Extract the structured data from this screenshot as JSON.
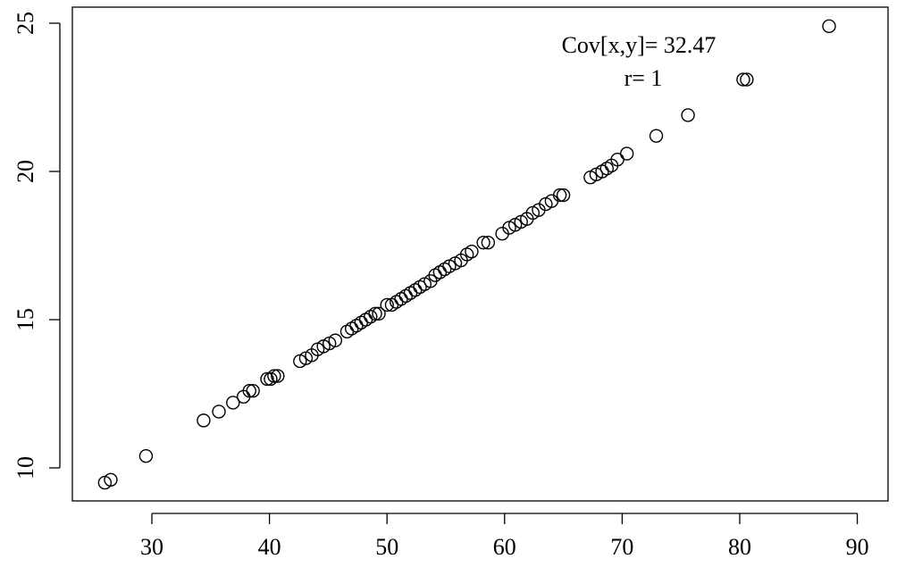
{
  "chart_data": {
    "type": "scatter",
    "title": "",
    "xlabel": "",
    "ylabel": "",
    "xlim": [
      24,
      90
    ],
    "ylim": [
      9,
      25.5
    ],
    "x_ticks": [
      30,
      40,
      50,
      60,
      70,
      80,
      90
    ],
    "y_ticks": [
      10,
      15,
      20,
      25
    ],
    "grid": false,
    "marker": "open-circle",
    "annotations": [
      {
        "text": "Cov[x,y]= 32.47",
        "x": 74.0,
        "y": 24.2
      },
      {
        "text": "r= 1",
        "x": 74.0,
        "y": 23.1
      }
    ],
    "points": [
      {
        "x": 26.0,
        "y": 9.5
      },
      {
        "x": 26.5,
        "y": 9.6
      },
      {
        "x": 29.5,
        "y": 10.4
      },
      {
        "x": 34.4,
        "y": 11.6
      },
      {
        "x": 35.7,
        "y": 11.9
      },
      {
        "x": 36.9,
        "y": 12.2
      },
      {
        "x": 37.8,
        "y": 12.4
      },
      {
        "x": 38.3,
        "y": 12.6
      },
      {
        "x": 38.6,
        "y": 12.6
      },
      {
        "x": 39.8,
        "y": 13.0
      },
      {
        "x": 40.1,
        "y": 13.0
      },
      {
        "x": 40.4,
        "y": 13.1
      },
      {
        "x": 40.7,
        "y": 13.1
      },
      {
        "x": 42.6,
        "y": 13.6
      },
      {
        "x": 43.1,
        "y": 13.7
      },
      {
        "x": 43.6,
        "y": 13.8
      },
      {
        "x": 44.1,
        "y": 14.0
      },
      {
        "x": 44.6,
        "y": 14.1
      },
      {
        "x": 45.1,
        "y": 14.2
      },
      {
        "x": 45.6,
        "y": 14.3
      },
      {
        "x": 46.6,
        "y": 14.6
      },
      {
        "x": 47.0,
        "y": 14.7
      },
      {
        "x": 47.4,
        "y": 14.8
      },
      {
        "x": 47.8,
        "y": 14.9
      },
      {
        "x": 48.2,
        "y": 15.0
      },
      {
        "x": 48.6,
        "y": 15.1
      },
      {
        "x": 49.0,
        "y": 15.2
      },
      {
        "x": 49.3,
        "y": 15.2
      },
      {
        "x": 50.0,
        "y": 15.5
      },
      {
        "x": 50.4,
        "y": 15.5
      },
      {
        "x": 50.8,
        "y": 15.6
      },
      {
        "x": 51.2,
        "y": 15.7
      },
      {
        "x": 51.6,
        "y": 15.8
      },
      {
        "x": 52.0,
        "y": 15.9
      },
      {
        "x": 52.4,
        "y": 16.0
      },
      {
        "x": 52.8,
        "y": 16.1
      },
      {
        "x": 53.2,
        "y": 16.2
      },
      {
        "x": 53.7,
        "y": 16.3
      },
      {
        "x": 54.1,
        "y": 16.5
      },
      {
        "x": 54.5,
        "y": 16.6
      },
      {
        "x": 54.9,
        "y": 16.7
      },
      {
        "x": 55.3,
        "y": 16.8
      },
      {
        "x": 55.8,
        "y": 16.9
      },
      {
        "x": 56.3,
        "y": 17.0
      },
      {
        "x": 56.8,
        "y": 17.2
      },
      {
        "x": 57.2,
        "y": 17.3
      },
      {
        "x": 58.2,
        "y": 17.6
      },
      {
        "x": 58.6,
        "y": 17.6
      },
      {
        "x": 59.8,
        "y": 17.9
      },
      {
        "x": 60.4,
        "y": 18.1
      },
      {
        "x": 60.9,
        "y": 18.2
      },
      {
        "x": 61.4,
        "y": 18.3
      },
      {
        "x": 61.9,
        "y": 18.4
      },
      {
        "x": 62.4,
        "y": 18.6
      },
      {
        "x": 62.9,
        "y": 18.7
      },
      {
        "x": 63.5,
        "y": 18.9
      },
      {
        "x": 64.0,
        "y": 19.0
      },
      {
        "x": 64.7,
        "y": 19.2
      },
      {
        "x": 65.0,
        "y": 19.2
      },
      {
        "x": 67.3,
        "y": 19.8
      },
      {
        "x": 67.8,
        "y": 19.9
      },
      {
        "x": 68.3,
        "y": 20.0
      },
      {
        "x": 68.7,
        "y": 20.1
      },
      {
        "x": 69.1,
        "y": 20.2
      },
      {
        "x": 69.6,
        "y": 20.4
      },
      {
        "x": 70.4,
        "y": 20.6
      },
      {
        "x": 72.9,
        "y": 21.2
      },
      {
        "x": 75.6,
        "y": 21.9
      },
      {
        "x": 80.3,
        "y": 23.1
      },
      {
        "x": 80.6,
        "y": 23.1
      },
      {
        "x": 87.6,
        "y": 24.9
      }
    ]
  }
}
